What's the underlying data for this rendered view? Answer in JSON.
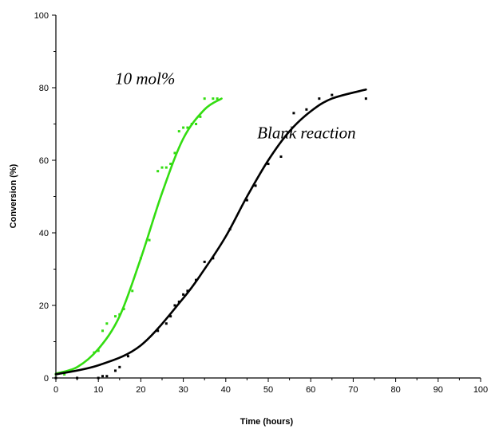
{
  "chart_data": {
    "type": "scatter",
    "xlabel": "Time (hours)",
    "ylabel": "Conversion (%)",
    "xlim": [
      0,
      100
    ],
    "ylim": [
      0,
      100
    ],
    "xticks": [
      0,
      10,
      20,
      30,
      40,
      50,
      60,
      70,
      80,
      90,
      100
    ],
    "yticks": [
      0,
      20,
      40,
      60,
      80,
      100
    ],
    "grid": false,
    "annotations": [
      {
        "text": "10 mol%",
        "x": 21,
        "y": 81
      },
      {
        "text": "Blank reaction",
        "x": 59,
        "y": 66
      }
    ],
    "series": [
      {
        "name": "10 mol%",
        "color": "#33dd11",
        "points": [
          [
            0,
            1
          ],
          [
            2,
            1
          ],
          [
            9,
            7
          ],
          [
            10,
            7.5
          ],
          [
            11,
            13
          ],
          [
            12,
            15
          ],
          [
            14,
            17
          ],
          [
            15,
            17.5
          ],
          [
            16,
            19
          ],
          [
            18,
            24
          ],
          [
            20,
            33
          ],
          [
            22,
            38
          ],
          [
            24,
            57
          ],
          [
            25,
            58
          ],
          [
            26,
            58
          ],
          [
            27,
            59
          ],
          [
            28,
            62
          ],
          [
            29,
            68
          ],
          [
            30,
            69
          ],
          [
            31,
            69
          ],
          [
            32,
            70
          ],
          [
            33,
            70
          ],
          [
            34,
            72
          ],
          [
            35,
            77
          ],
          [
            37,
            77
          ],
          [
            38,
            77
          ]
        ],
        "fit": [
          [
            0,
            1.2
          ],
          [
            5,
            3
          ],
          [
            10,
            8
          ],
          [
            15,
            17
          ],
          [
            20,
            33
          ],
          [
            25,
            51
          ],
          [
            30,
            66
          ],
          [
            35,
            74
          ],
          [
            39,
            77
          ]
        ]
      },
      {
        "name": "Blank reaction",
        "color": "#000000",
        "points": [
          [
            0,
            0
          ],
          [
            5,
            0
          ],
          [
            10,
            0
          ],
          [
            11,
            0.5
          ],
          [
            12,
            0.5
          ],
          [
            14,
            2
          ],
          [
            15,
            3
          ],
          [
            17,
            6
          ],
          [
            24,
            13
          ],
          [
            26,
            15
          ],
          [
            27,
            17
          ],
          [
            28,
            20
          ],
          [
            29,
            21
          ],
          [
            30,
            23
          ],
          [
            31,
            24
          ],
          [
            33,
            27
          ],
          [
            35,
            32
          ],
          [
            37,
            33
          ],
          [
            41,
            41
          ],
          [
            45,
            49
          ],
          [
            47,
            53
          ],
          [
            50,
            59
          ],
          [
            53,
            61
          ],
          [
            56,
            73
          ],
          [
            59,
            74
          ],
          [
            62,
            77
          ],
          [
            65,
            78
          ],
          [
            73,
            77
          ]
        ],
        "fit": [
          [
            0,
            1
          ],
          [
            10,
            3.5
          ],
          [
            20,
            9
          ],
          [
            30,
            22
          ],
          [
            35,
            30
          ],
          [
            40,
            39
          ],
          [
            45,
            50
          ],
          [
            50,
            60
          ],
          [
            55,
            68
          ],
          [
            60,
            73.5
          ],
          [
            65,
            77
          ],
          [
            73,
            79.5
          ]
        ]
      }
    ]
  }
}
